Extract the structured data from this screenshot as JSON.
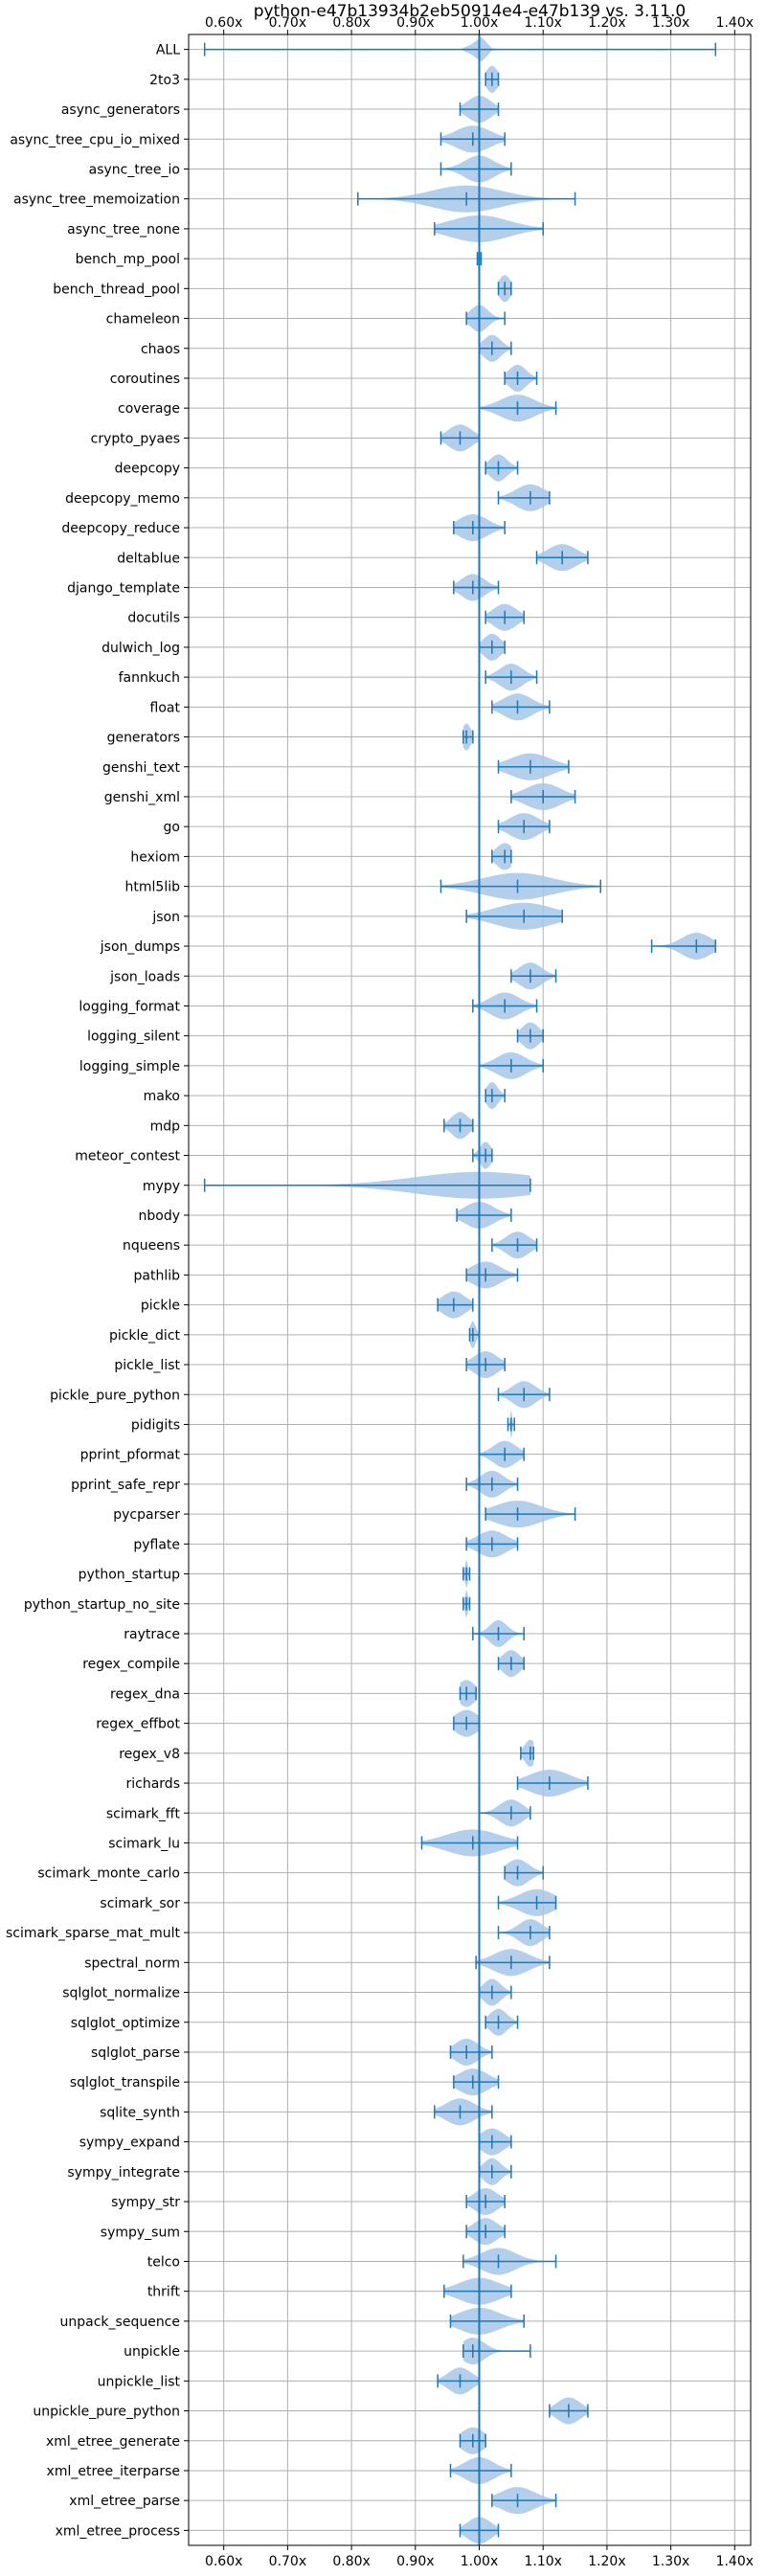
{
  "chart_data": {
    "type": "violin",
    "title": "python-e47b13934b2eb50914e4-e47b139 vs. 3.11.0",
    "xlim": [
      0.545,
      1.425
    ],
    "xticks": [
      0.6,
      0.7,
      0.8,
      0.9,
      1.0,
      1.1,
      1.2,
      1.3,
      1.4
    ],
    "xtick_labels": [
      "0.60x",
      "0.70x",
      "0.80x",
      "0.90x",
      "1.00x",
      "1.10x",
      "1.20x",
      "1.30x",
      "1.40x"
    ],
    "reference_line": 1.0,
    "grid": true,
    "colors": {
      "violin_fill": "#a7c7e7",
      "line": "#1f77b4",
      "grid": "#b0b0b0"
    },
    "categories": [
      "ALL",
      "2to3",
      "async_generators",
      "async_tree_cpu_io_mixed",
      "async_tree_io",
      "async_tree_memoization",
      "async_tree_none",
      "bench_mp_pool",
      "bench_thread_pool",
      "chameleon",
      "chaos",
      "coroutines",
      "coverage",
      "crypto_pyaes",
      "deepcopy",
      "deepcopy_memo",
      "deepcopy_reduce",
      "deltablue",
      "django_template",
      "docutils",
      "dulwich_log",
      "fannkuch",
      "float",
      "generators",
      "genshi_text",
      "genshi_xml",
      "go",
      "hexiom",
      "html5lib",
      "json",
      "json_dumps",
      "json_loads",
      "logging_format",
      "logging_silent",
      "logging_simple",
      "mako",
      "mdp",
      "meteor_contest",
      "mypy",
      "nbody",
      "nqueens",
      "pathlib",
      "pickle",
      "pickle_dict",
      "pickle_list",
      "pickle_pure_python",
      "pidigits",
      "pprint_pformat",
      "pprint_safe_repr",
      "pycparser",
      "pyflate",
      "python_startup",
      "python_startup_no_site",
      "raytrace",
      "regex_compile",
      "regex_dna",
      "regex_effbot",
      "regex_v8",
      "richards",
      "scimark_fft",
      "scimark_lu",
      "scimark_monte_carlo",
      "scimark_sor",
      "scimark_sparse_mat_mult",
      "spectral_norm",
      "sqlglot_normalize",
      "sqlglot_optimize",
      "sqlglot_parse",
      "sqlglot_transpile",
      "sqlite_synth",
      "sympy_expand",
      "sympy_integrate",
      "sympy_str",
      "sympy_sum",
      "telco",
      "thrift",
      "unpack_sequence",
      "unpickle",
      "unpickle_list",
      "unpickle_pure_python",
      "xml_etree_generate",
      "xml_etree_iterparse",
      "xml_etree_parse",
      "xml_etree_process"
    ],
    "min": [
      0.57,
      1.01,
      0.97,
      0.94,
      0.94,
      0.81,
      0.93,
      0.997,
      1.03,
      0.98,
      1.0,
      1.04,
      1.0,
      0.94,
      1.01,
      1.03,
      0.96,
      1.09,
      0.96,
      1.01,
      1.0,
      1.01,
      1.02,
      0.975,
      1.03,
      1.05,
      1.03,
      1.02,
      0.94,
      0.98,
      1.27,
      1.05,
      0.99,
      1.06,
      1.0,
      1.01,
      0.945,
      0.99,
      0.57,
      0.965,
      1.02,
      0.98,
      0.935,
      0.985,
      0.98,
      1.03,
      1.045,
      1.0,
      0.98,
      1.01,
      0.98,
      0.975,
      0.975,
      0.99,
      1.03,
      0.97,
      0.96,
      1.065,
      1.06,
      1.0,
      0.91,
      1.04,
      1.03,
      1.03,
      0.995,
      1.0,
      1.01,
      0.955,
      0.96,
      0.93,
      1.0,
      1.0,
      0.98,
      0.98,
      0.975,
      0.945,
      0.955,
      0.975,
      0.935,
      1.11,
      0.97,
      0.955,
      1.02,
      0.97
    ],
    "max": [
      1.37,
      1.03,
      1.03,
      1.04,
      1.05,
      1.15,
      1.1,
      1.003,
      1.05,
      1.04,
      1.05,
      1.09,
      1.12,
      1.0,
      1.06,
      1.11,
      1.04,
      1.17,
      1.03,
      1.07,
      1.04,
      1.09,
      1.11,
      0.99,
      1.14,
      1.15,
      1.11,
      1.05,
      1.19,
      1.13,
      1.37,
      1.12,
      1.09,
      1.1,
      1.1,
      1.04,
      0.99,
      1.02,
      1.08,
      1.05,
      1.09,
      1.06,
      0.99,
      1.0,
      1.04,
      1.11,
      1.055,
      1.07,
      1.06,
      1.15,
      1.06,
      0.985,
      0.985,
      1.07,
      1.07,
      0.995,
      1.0,
      1.085,
      1.17,
      1.08,
      1.06,
      1.1,
      1.12,
      1.11,
      1.11,
      1.05,
      1.06,
      1.02,
      1.03,
      1.02,
      1.05,
      1.05,
      1.04,
      1.04,
      1.12,
      1.05,
      1.07,
      1.08,
      1.0,
      1.17,
      1.01,
      1.05,
      1.12,
      1.03
    ],
    "median": [
      1.0,
      1.02,
      1.0,
      0.99,
      1.0,
      0.98,
      1.0,
      1.0,
      1.04,
      1.0,
      1.02,
      1.06,
      1.06,
      0.97,
      1.03,
      1.08,
      0.99,
      1.13,
      0.99,
      1.04,
      1.02,
      1.05,
      1.06,
      0.98,
      1.08,
      1.1,
      1.07,
      1.04,
      1.06,
      1.07,
      1.34,
      1.08,
      1.04,
      1.08,
      1.05,
      1.02,
      0.97,
      1.01,
      1.0,
      1.0,
      1.06,
      1.01,
      0.96,
      0.99,
      1.01,
      1.07,
      1.05,
      1.04,
      1.02,
      1.06,
      1.02,
      0.98,
      0.98,
      1.03,
      1.05,
      0.98,
      0.98,
      1.08,
      1.11,
      1.05,
      0.99,
      1.06,
      1.09,
      1.08,
      1.05,
      1.02,
      1.03,
      0.98,
      0.99,
      0.97,
      1.02,
      1.02,
      1.01,
      1.01,
      1.03,
      1.0,
      1.0,
      0.99,
      0.97,
      1.14,
      0.99,
      1.0,
      1.06,
      1.0
    ],
    "spread": [
      0.02,
      0.02,
      0.04,
      0.06,
      0.05,
      0.12,
      0.1,
      0.003,
      0.02,
      0.03,
      0.03,
      0.03,
      0.06,
      0.04,
      0.03,
      0.05,
      0.05,
      0.05,
      0.04,
      0.04,
      0.03,
      0.04,
      0.05,
      0.015,
      0.07,
      0.06,
      0.05,
      0.03,
      0.12,
      0.1,
      0.05,
      0.04,
      0.05,
      0.03,
      0.05,
      0.02,
      0.03,
      0.02,
      0.22,
      0.05,
      0.04,
      0.05,
      0.04,
      0.01,
      0.04,
      0.04,
      0.003,
      0.04,
      0.04,
      0.08,
      0.05,
      0.005,
      0.005,
      0.03,
      0.03,
      0.03,
      0.04,
      0.02,
      0.07,
      0.04,
      0.09,
      0.04,
      0.06,
      0.04,
      0.06,
      0.03,
      0.03,
      0.04,
      0.05,
      0.05,
      0.04,
      0.03,
      0.04,
      0.04,
      0.06,
      0.07,
      0.07,
      0.04,
      0.04,
      0.04,
      0.04,
      0.05,
      0.06,
      0.04
    ]
  }
}
